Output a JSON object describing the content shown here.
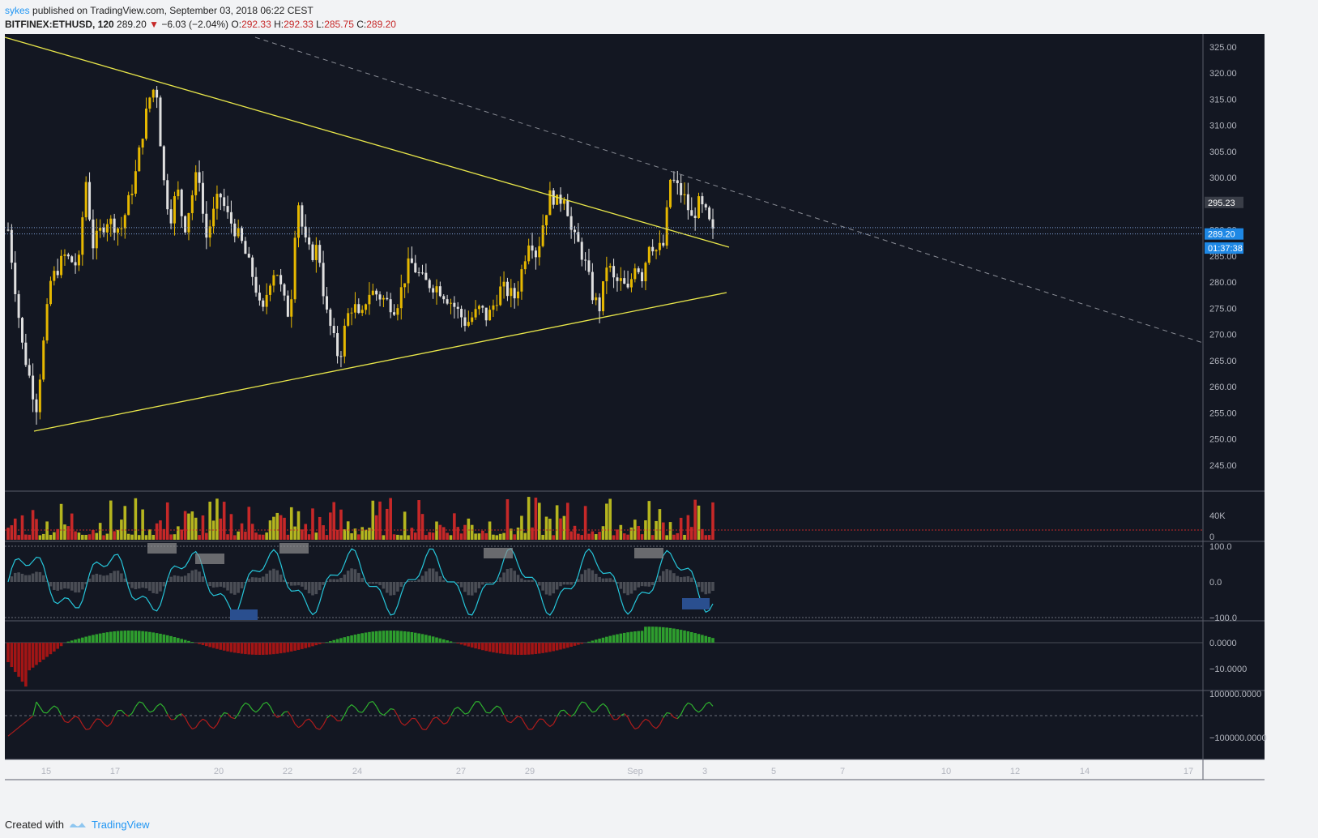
{
  "header": {
    "publisher": "sykes",
    "published_text": "published on TradingView.com, September 03, 2018 06:22 CEST",
    "symbol": "BITFINEX:ETHUSD, 120",
    "last": "289.20",
    "change": "−6.03 (−2.04%)",
    "o_label": "O:",
    "o": "292.33",
    "h_label": "H:",
    "h": "292.33",
    "l_label": "L:",
    "l": "285.75",
    "c_label": "C:",
    "c": "289.20"
  },
  "colors": {
    "background": "#131722",
    "bull": "#e6b800",
    "bear": "#e0e0e0",
    "trend": "#e8e64a",
    "vol_red": "#c62828",
    "vol_yellow": "#b5b51f",
    "stoch": "#26c6da",
    "macd_green": "#2e9e2e",
    "macd_red": "#a31515",
    "label_blue": "#1e88e5"
  },
  "chart_data": {
    "type": "candlestick",
    "symbol": "BITFINEX:ETHUSD",
    "interval": "120",
    "price_axis": {
      "range": [
        240,
        330
      ],
      "ticks": [
        "325.00",
        "320.00",
        "315.00",
        "310.00",
        "305.00",
        "300.00",
        "295.00",
        "290.00",
        "285.00",
        "280.00",
        "275.00",
        "270.00",
        "265.00",
        "260.00",
        "255.00",
        "250.00",
        "245.00"
      ],
      "labels": [
        {
          "text": "295.23",
          "value": 295.23,
          "style": "grey"
        },
        {
          "text": "289.20",
          "value": 289.2,
          "style": "blue"
        },
        {
          "text": "01:37:38",
          "value": 286.5,
          "style": "blue"
        }
      ]
    },
    "x_ticks": [
      "15",
      "17",
      "20",
      "22",
      "24",
      "27",
      "29",
      "Sep",
      "3",
      "5",
      "7",
      "10",
      "12",
      "14",
      "17"
    ],
    "close_path": [
      [
        0,
        290
      ],
      [
        2,
        268
      ],
      [
        4,
        256
      ],
      [
        6,
        280
      ],
      [
        8,
        285
      ],
      [
        10,
        283
      ],
      [
        11,
        300
      ],
      [
        12,
        287
      ],
      [
        14,
        292
      ],
      [
        16,
        290
      ],
      [
        18,
        300
      ],
      [
        19,
        308
      ],
      [
        20,
        315
      ],
      [
        21,
        318
      ],
      [
        22,
        300
      ],
      [
        23,
        292
      ],
      [
        24,
        298
      ],
      [
        25,
        290
      ],
      [
        27,
        302
      ],
      [
        28,
        288
      ],
      [
        30,
        297
      ],
      [
        31,
        293
      ],
      [
        33,
        288
      ],
      [
        35,
        280
      ],
      [
        36,
        273
      ],
      [
        37,
        280
      ],
      [
        38,
        283
      ],
      [
        39,
        277
      ],
      [
        40,
        273
      ],
      [
        41,
        297
      ],
      [
        42,
        288
      ],
      [
        43,
        285
      ],
      [
        44,
        287
      ],
      [
        45,
        275
      ],
      [
        46,
        270
      ],
      [
        47,
        265
      ],
      [
        48,
        273
      ],
      [
        49,
        276
      ],
      [
        50,
        272
      ],
      [
        51,
        278
      ],
      [
        52,
        278
      ],
      [
        54,
        276
      ],
      [
        55,
        275
      ],
      [
        57,
        284
      ],
      [
        59,
        280
      ],
      [
        61,
        279
      ],
      [
        63,
        276
      ],
      [
        65,
        272
      ],
      [
        67,
        275
      ],
      [
        68,
        273
      ],
      [
        70,
        279
      ],
      [
        72,
        277
      ],
      [
        74,
        289
      ],
      [
        75,
        285
      ],
      [
        76,
        292
      ],
      [
        77,
        297
      ],
      [
        78,
        295
      ],
      [
        79,
        297
      ],
      [
        80,
        289
      ],
      [
        81,
        287
      ],
      [
        82,
        283
      ],
      [
        83,
        277
      ],
      [
        84,
        275
      ],
      [
        85,
        284
      ],
      [
        86,
        280
      ],
      [
        87,
        280
      ],
      [
        88,
        278
      ],
      [
        89,
        284
      ],
      [
        90,
        281
      ],
      [
        91,
        288
      ],
      [
        92,
        286
      ],
      [
        93,
        287
      ],
      [
        94,
        300
      ],
      [
        95,
        298
      ],
      [
        96,
        296
      ],
      [
        97,
        292
      ],
      [
        98,
        295
      ],
      [
        99,
        293
      ],
      [
        100,
        289.2
      ]
    ],
    "trendlines": [
      {
        "name": "upper",
        "from": [
          "Aug 14",
          328
        ],
        "to": [
          "Sep 3",
          289
        ]
      },
      {
        "name": "lower",
        "from": [
          "Aug 14",
          253.5
        ],
        "to": [
          "Sep 3",
          280
        ]
      },
      {
        "name": "dashed",
        "from": [
          "Aug 21",
          328
        ],
        "to": [
          "Sep 17",
          270
        ]
      }
    ],
    "volume": {
      "ticks": [
        "40K",
        "0"
      ],
      "range": [
        0,
        60000
      ]
    },
    "stoch": {
      "ticks": [
        "100.0",
        "0.0",
        "−100.0"
      ],
      "range": [
        -110,
        110
      ]
    },
    "macd": {
      "ticks": [
        "0.0000",
        "−10.0000"
      ],
      "range": [
        -14,
        5
      ]
    },
    "flow": {
      "ticks": [
        "100000.0000",
        "−100000.0000"
      ],
      "range": [
        -140000,
        140000
      ]
    }
  },
  "footer": {
    "created_with": "Created with",
    "brand": "TradingView"
  }
}
